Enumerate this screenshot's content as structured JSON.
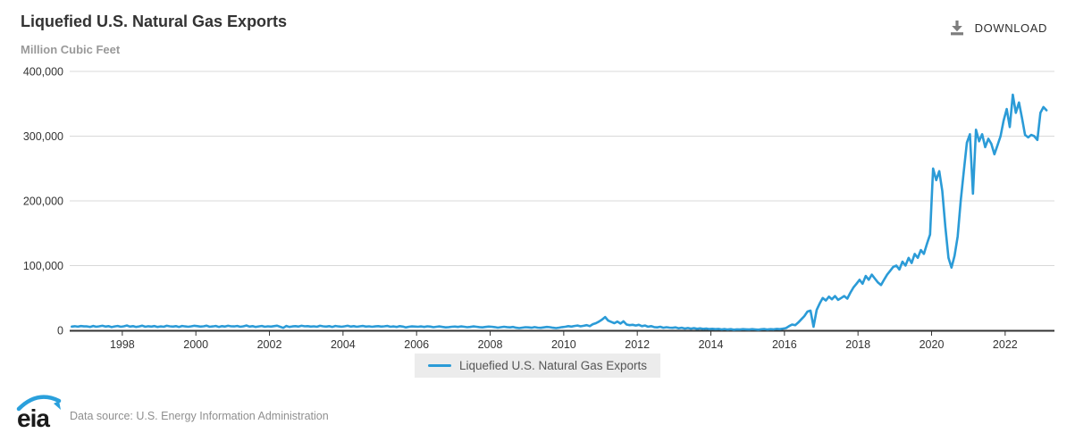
{
  "header": {
    "title": "Liquefied U.S. Natural Gas Exports",
    "download_label": "DOWNLOAD"
  },
  "legend": {
    "label": "Liquefied U.S. Natural Gas Exports"
  },
  "footer": {
    "logo_text": "eia",
    "data_source": "Data source: U.S. Energy Information Administration"
  },
  "colors": {
    "series_line": "#2b9bd7",
    "grid_line": "#d8d8d8",
    "axis_line": "#333333",
    "download_icon": "#7d7d7d",
    "logo_blue": "#2aa0dc",
    "logo_black": "#1a1a1a"
  },
  "chart_data": {
    "type": "line",
    "title": "Liquefied U.S. Natural Gas Exports",
    "ylabel": "Million Cubic Feet",
    "series_name": "Liquefied U.S. Natural Gas Exports",
    "line_color": "#2b9bd7",
    "grid": true,
    "legend_position": "bottom-center",
    "xlim": [
      1996.57,
      2023.34
    ],
    "ylim": [
      0,
      400000
    ],
    "x_ticks": [
      1998,
      2000,
      2002,
      2004,
      2006,
      2008,
      2010,
      2012,
      2014,
      2016,
      2018,
      2020,
      2022
    ],
    "y_ticks": [
      0,
      100000,
      200000,
      300000,
      400000
    ],
    "y_tick_labels": [
      "0",
      "100,000",
      "200,000",
      "300,000",
      "400,000"
    ],
    "x_start_year": 1996,
    "x_start_month": 8,
    "frequency": "monthly",
    "units": "Million Cubic Feet",
    "values": [
      5800,
      6400,
      5600,
      6600,
      6100,
      6000,
      5200,
      6800,
      5500,
      6200,
      7000,
      5800,
      6500,
      5000,
      6000,
      6800,
      5500,
      6200,
      7500,
      5800,
      6500,
      5200,
      6000,
      7200,
      5500,
      6300,
      5800,
      6600,
      5200,
      6000,
      5500,
      7000,
      6200,
      5800,
      6500,
      5200,
      6800,
      6000,
      5500,
      6200,
      7000,
      6500,
      5800,
      6200,
      7200,
      5500,
      6000,
      6800,
      5200,
      6500,
      5800,
      7000,
      6200,
      6000,
      6800,
      5500,
      6200,
      7500,
      5800,
      6500,
      5200,
      6000,
      6800,
      5500,
      6200,
      5800,
      6500,
      7200,
      5500,
      3800,
      6800,
      5200,
      6000,
      6500,
      5800,
      7000,
      6200,
      6500,
      5800,
      6200,
      5500,
      7000,
      6200,
      5800,
      6500,
      5200,
      6800,
      6000,
      5500,
      6200,
      7000,
      5800,
      6500,
      5500,
      6200,
      6800,
      5800,
      6200,
      5500,
      6000,
      6500,
      5800,
      6200,
      6800,
      5500,
      6000,
      5200,
      6500,
      5800,
      4500,
      5500,
      6000,
      5800,
      5500,
      6000,
      5200,
      6200,
      5800,
      4800,
      5500,
      6000,
      5200,
      4500,
      5000,
      5500,
      5800,
      5200,
      6000,
      5500,
      4800,
      5200,
      6000,
      5500,
      5000,
      4500,
      5200,
      5800,
      5500,
      5000,
      4200,
      4800,
      5500,
      5000,
      4500,
      5200,
      4000,
      3500,
      4200,
      4800,
      4500,
      4000,
      5000,
      4200,
      3800,
      4500,
      5200,
      4800,
      4000,
      3500,
      4200,
      5000,
      5500,
      6500,
      5800,
      6800,
      7500,
      6200,
      7000,
      8000,
      6500,
      9500,
      11000,
      13500,
      16500,
      20500,
      15000,
      13000,
      11000,
      13500,
      10500,
      14000,
      9000,
      8000,
      8500,
      7500,
      8500,
      6500,
      7500,
      5500,
      6500,
      5000,
      4500,
      5500,
      4000,
      4800,
      4200,
      3800,
      4500,
      3200,
      4000,
      2800,
      3600,
      2600,
      3400,
      2400,
      3000,
      2200,
      2800,
      2000,
      2400,
      1800,
      2200,
      1400,
      2000,
      1200,
      1800,
      1000,
      1500,
      1200,
      1800,
      1500,
      1200,
      1800,
      1400,
      1000,
      1600,
      2000,
      1200,
      1800,
      1500,
      2200,
      1800,
      2600,
      3500,
      6500,
      9000,
      8000,
      12000,
      17000,
      22000,
      29000,
      30500,
      5500,
      31500,
      41500,
      50000,
      46000,
      52000,
      48000,
      53000,
      47000,
      50000,
      53000,
      49000,
      58000,
      66000,
      72000,
      78000,
      72000,
      84000,
      78000,
      86000,
      80000,
      74000,
      70000,
      78000,
      86000,
      92000,
      98000,
      100000,
      94000,
      106000,
      100000,
      112000,
      104000,
      118000,
      112000,
      124000,
      118000,
      134000,
      148000,
      250000,
      232000,
      246000,
      215000,
      160000,
      112000,
      97000,
      115000,
      145000,
      200000,
      245000,
      290000,
      303000,
      211000,
      310000,
      292000,
      303000,
      283000,
      296000,
      288000,
      272000,
      286000,
      300000,
      324000,
      342000,
      314000,
      364000,
      336000,
      352000,
      328000,
      302000,
      298000,
      302000,
      300000,
      294000,
      336000,
      345000,
      340000
    ]
  }
}
